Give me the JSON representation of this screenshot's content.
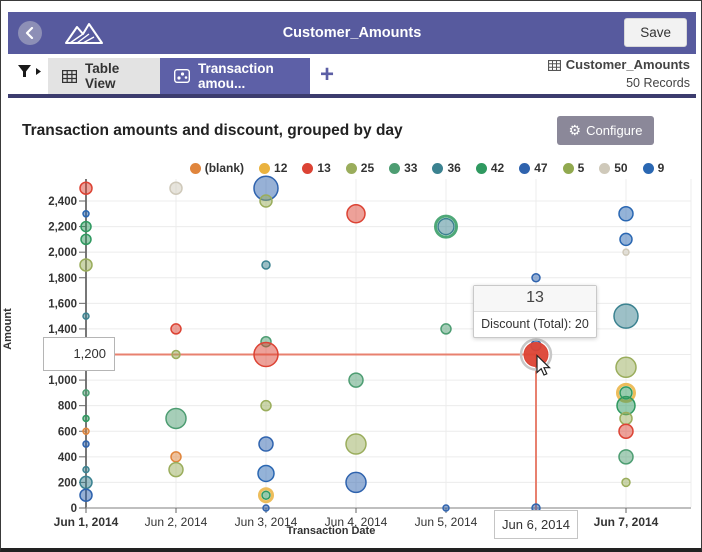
{
  "header": {
    "title": "Customer_Amounts",
    "save_label": "Save"
  },
  "tabs": {
    "table_view": "Table View",
    "chart_tab": "Transaction amou...",
    "add_label": "+",
    "dataset_name": "Customer_Amounts",
    "record_count": "50 Records"
  },
  "toolbar": {
    "title": "Transaction amounts and discount, grouped by day",
    "configure_label": "Configure",
    "gear_glyph": "⚙"
  },
  "tooltip": {
    "title": "13",
    "body": "Discount (Total): 20"
  },
  "crosshair": {
    "y_label": "1,200",
    "x_label": "Jun 6, 2014"
  },
  "chart_data": {
    "type": "scatter",
    "title": "Transaction amounts and discount, grouped by day",
    "xlabel": "Transaction Date",
    "ylabel": "Amount",
    "ylim": [
      0,
      2600
    ],
    "grid": true,
    "legend_position": "top",
    "legend": [
      {
        "label": "(blank)",
        "color": "#e0853c"
      },
      {
        "label": "12",
        "color": "#eab23e"
      },
      {
        "label": "13",
        "color": "#dc4334"
      },
      {
        "label": "25",
        "color": "#9aad5c"
      },
      {
        "label": "33",
        "color": "#4d9d72"
      },
      {
        "label": "36",
        "color": "#3b8290"
      },
      {
        "label": "42",
        "color": "#2f9960"
      },
      {
        "label": "47",
        "color": "#2f63ae"
      },
      {
        "label": "5",
        "color": "#91a94f"
      },
      {
        "label": "50",
        "color": "#cfc9ba"
      },
      {
        "label": "9",
        "color": "#2a67b2"
      }
    ],
    "y_ticks": [
      {
        "value": 0,
        "label": "0"
      },
      {
        "value": 200,
        "label": "200"
      },
      {
        "value": 400,
        "label": "400"
      },
      {
        "value": 600,
        "label": "600"
      },
      {
        "value": 800,
        "label": "800"
      },
      {
        "value": 1000,
        "label": "1,000"
      },
      {
        "value": 1200,
        "label": "1,200",
        "boxed": true
      },
      {
        "value": 1400,
        "label": "1,400"
      },
      {
        "value": 1600,
        "label": "1,600"
      },
      {
        "value": 1800,
        "label": "1,800"
      },
      {
        "value": 2000,
        "label": "2,000"
      },
      {
        "value": 2200,
        "label": "2,200"
      },
      {
        "value": 2400,
        "label": "2,400"
      }
    ],
    "x_ticks": [
      {
        "day": 1,
        "label": "Jun 1, 2014",
        "bold": true
      },
      {
        "day": 2,
        "label": "Jun 2, 2014",
        "bold": false
      },
      {
        "day": 3,
        "label": "Jun 3, 2014",
        "bold": false
      },
      {
        "day": 4,
        "label": "Jun 4, 2014",
        "bold": false
      },
      {
        "day": 5,
        "label": "Jun 5, 2014",
        "bold": false
      },
      {
        "day": 6,
        "label": "Jun 6, 2014",
        "bold": false,
        "boxed": true
      },
      {
        "day": 7,
        "label": "Jun 7, 2014",
        "bold": true
      }
    ],
    "points": [
      {
        "x": 1,
        "y": 2500,
        "series": "13",
        "r": 6
      },
      {
        "x": 1,
        "y": 2300,
        "series": "9",
        "r": 3
      },
      {
        "x": 1,
        "y": 2200,
        "series": "42",
        "r": 5
      },
      {
        "x": 1,
        "y": 2100,
        "series": "42",
        "r": 5
      },
      {
        "x": 1,
        "y": 1900,
        "series": "25",
        "r": 6
      },
      {
        "x": 1,
        "y": 1500,
        "series": "36",
        "r": 3
      },
      {
        "x": 1,
        "y": 900,
        "series": "33",
        "r": 3
      },
      {
        "x": 1,
        "y": 700,
        "series": "42",
        "r": 3
      },
      {
        "x": 1,
        "y": 600,
        "series": "(blank)",
        "r": 3
      },
      {
        "x": 1,
        "y": 500,
        "series": "47",
        "r": 3
      },
      {
        "x": 1,
        "y": 300,
        "series": "36",
        "r": 3
      },
      {
        "x": 1,
        "y": 200,
        "series": "36",
        "r": 6
      },
      {
        "x": 1,
        "y": 100,
        "series": "47",
        "r": 6
      },
      {
        "x": 2,
        "y": 2500,
        "series": "50",
        "r": 6
      },
      {
        "x": 2,
        "y": 1400,
        "series": "13",
        "r": 5
      },
      {
        "x": 2,
        "y": 1200,
        "series": "25",
        "r": 4
      },
      {
        "x": 2,
        "y": 700,
        "series": "33",
        "r": 10
      },
      {
        "x": 2,
        "y": 400,
        "series": "(blank)",
        "r": 5
      },
      {
        "x": 2,
        "y": 300,
        "series": "25",
        "r": 7
      },
      {
        "x": 3,
        "y": 2500,
        "series": "47",
        "r": 12
      },
      {
        "x": 3,
        "y": 2400,
        "series": "25",
        "r": 6
      },
      {
        "x": 3,
        "y": 1900,
        "series": "36",
        "r": 4
      },
      {
        "x": 3,
        "y": 1300,
        "series": "33",
        "r": 5
      },
      {
        "x": 3,
        "y": 1200,
        "series": "13",
        "r": 12
      },
      {
        "x": 3,
        "y": 800,
        "series": "25",
        "r": 5
      },
      {
        "x": 3,
        "y": 500,
        "series": "47",
        "r": 7
      },
      {
        "x": 3,
        "y": 270,
        "series": "9",
        "r": 8
      },
      {
        "x": 3,
        "y": 100,
        "series": "42",
        "r": 4,
        "ring": "12"
      },
      {
        "x": 3,
        "y": 0,
        "series": "47",
        "r": 3
      },
      {
        "x": 4,
        "y": 2300,
        "series": "13",
        "r": 9
      },
      {
        "x": 4,
        "y": 1000,
        "series": "33",
        "r": 7
      },
      {
        "x": 4,
        "y": 500,
        "series": "25",
        "r": 10
      },
      {
        "x": 4,
        "y": 200,
        "series": "47",
        "r": 10
      },
      {
        "x": 5,
        "y": 2200,
        "series": "36",
        "r": 8,
        "ring": "42"
      },
      {
        "x": 5,
        "y": 1400,
        "series": "33",
        "r": 5
      },
      {
        "x": 5,
        "y": 0,
        "series": "47",
        "r": 3
      },
      {
        "x": 6,
        "y": 1800,
        "series": "47",
        "r": 4
      },
      {
        "x": 6,
        "y": 1270,
        "series": "9",
        "r": 5
      },
      {
        "x": 6,
        "y": 1200,
        "series": "13",
        "r": 12,
        "highlight": true
      },
      {
        "x": 6,
        "y": 0,
        "series": "47",
        "r": 4
      },
      {
        "x": 7,
        "y": 2300,
        "series": "9",
        "r": 7
      },
      {
        "x": 7,
        "y": 2100,
        "series": "9",
        "r": 6
      },
      {
        "x": 7,
        "y": 2000,
        "series": "50",
        "r": 3
      },
      {
        "x": 7,
        "y": 1500,
        "series": "36",
        "r": 12
      },
      {
        "x": 7,
        "y": 1100,
        "series": "25",
        "r": 10
      },
      {
        "x": 7,
        "y": 900,
        "series": "42",
        "r": 6,
        "ring": "12"
      },
      {
        "x": 7,
        "y": 800,
        "series": "42",
        "r": 9
      },
      {
        "x": 7,
        "y": 700,
        "series": "25",
        "r": 6
      },
      {
        "x": 7,
        "y": 600,
        "series": "13",
        "r": 7
      },
      {
        "x": 7,
        "y": 400,
        "series": "33",
        "r": 7
      },
      {
        "x": 7,
        "y": 200,
        "series": "25",
        "r": 4
      }
    ],
    "highlight": {
      "x": 6,
      "y": 1200,
      "series": "13",
      "crosshair_color": "#e8816f"
    }
  }
}
